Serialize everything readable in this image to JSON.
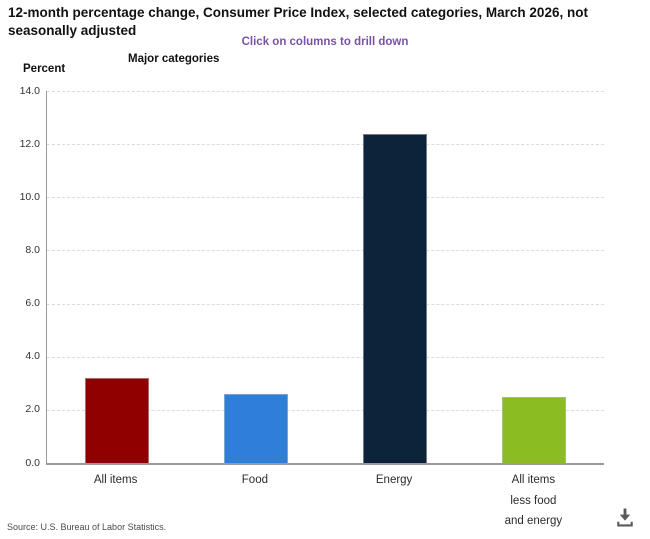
{
  "header": {
    "title": "12-month percentage change, Consumer Price Index, selected categories, March 2026, not seasonally adjusted",
    "subtitle": "Click on columns to drill down"
  },
  "axes": {
    "x_title": "Major categories",
    "y_title": "Percent"
  },
  "chart_data": {
    "type": "bar",
    "title": "12-month percentage change, Consumer Price Index, selected categories, March 2026, not seasonally adjusted",
    "xlabel": "Major categories",
    "ylabel": "Percent",
    "categories": [
      "All items",
      "Food",
      "Energy",
      "All items less food and energy"
    ],
    "category_label_lines": [
      [
        "All items"
      ],
      [
        "Food"
      ],
      [
        "Energy"
      ],
      [
        "All items",
        "less food",
        "and energy"
      ]
    ],
    "values": [
      3.2,
      2.6,
      12.4,
      2.5
    ],
    "bar_colors": [
      "#910000",
      "#2f7ed8",
      "#0d233a",
      "#8bbc21"
    ],
    "ylim": [
      0,
      14
    ],
    "yticks": [
      0,
      2,
      4,
      6,
      8,
      10,
      12,
      14
    ],
    "ytick_labels": [
      "0.0",
      "2.0",
      "4.0",
      "6.0",
      "8.0",
      "10.0",
      "12.0",
      "14.0"
    ],
    "grid": "horizontal-dashed",
    "legend": "none"
  },
  "footer": {
    "source": "Source: U.S. Bureau of Labor Statistics."
  },
  "icons": {
    "download": "download-icon"
  },
  "colors": {
    "subtitle_purple": "#7a52a5",
    "axis_line": "#9a9a9a",
    "gridline": "#dcdcdc",
    "title_text": "#111111",
    "source_text": "#4a4a4a",
    "download_icon": "#58595b"
  }
}
